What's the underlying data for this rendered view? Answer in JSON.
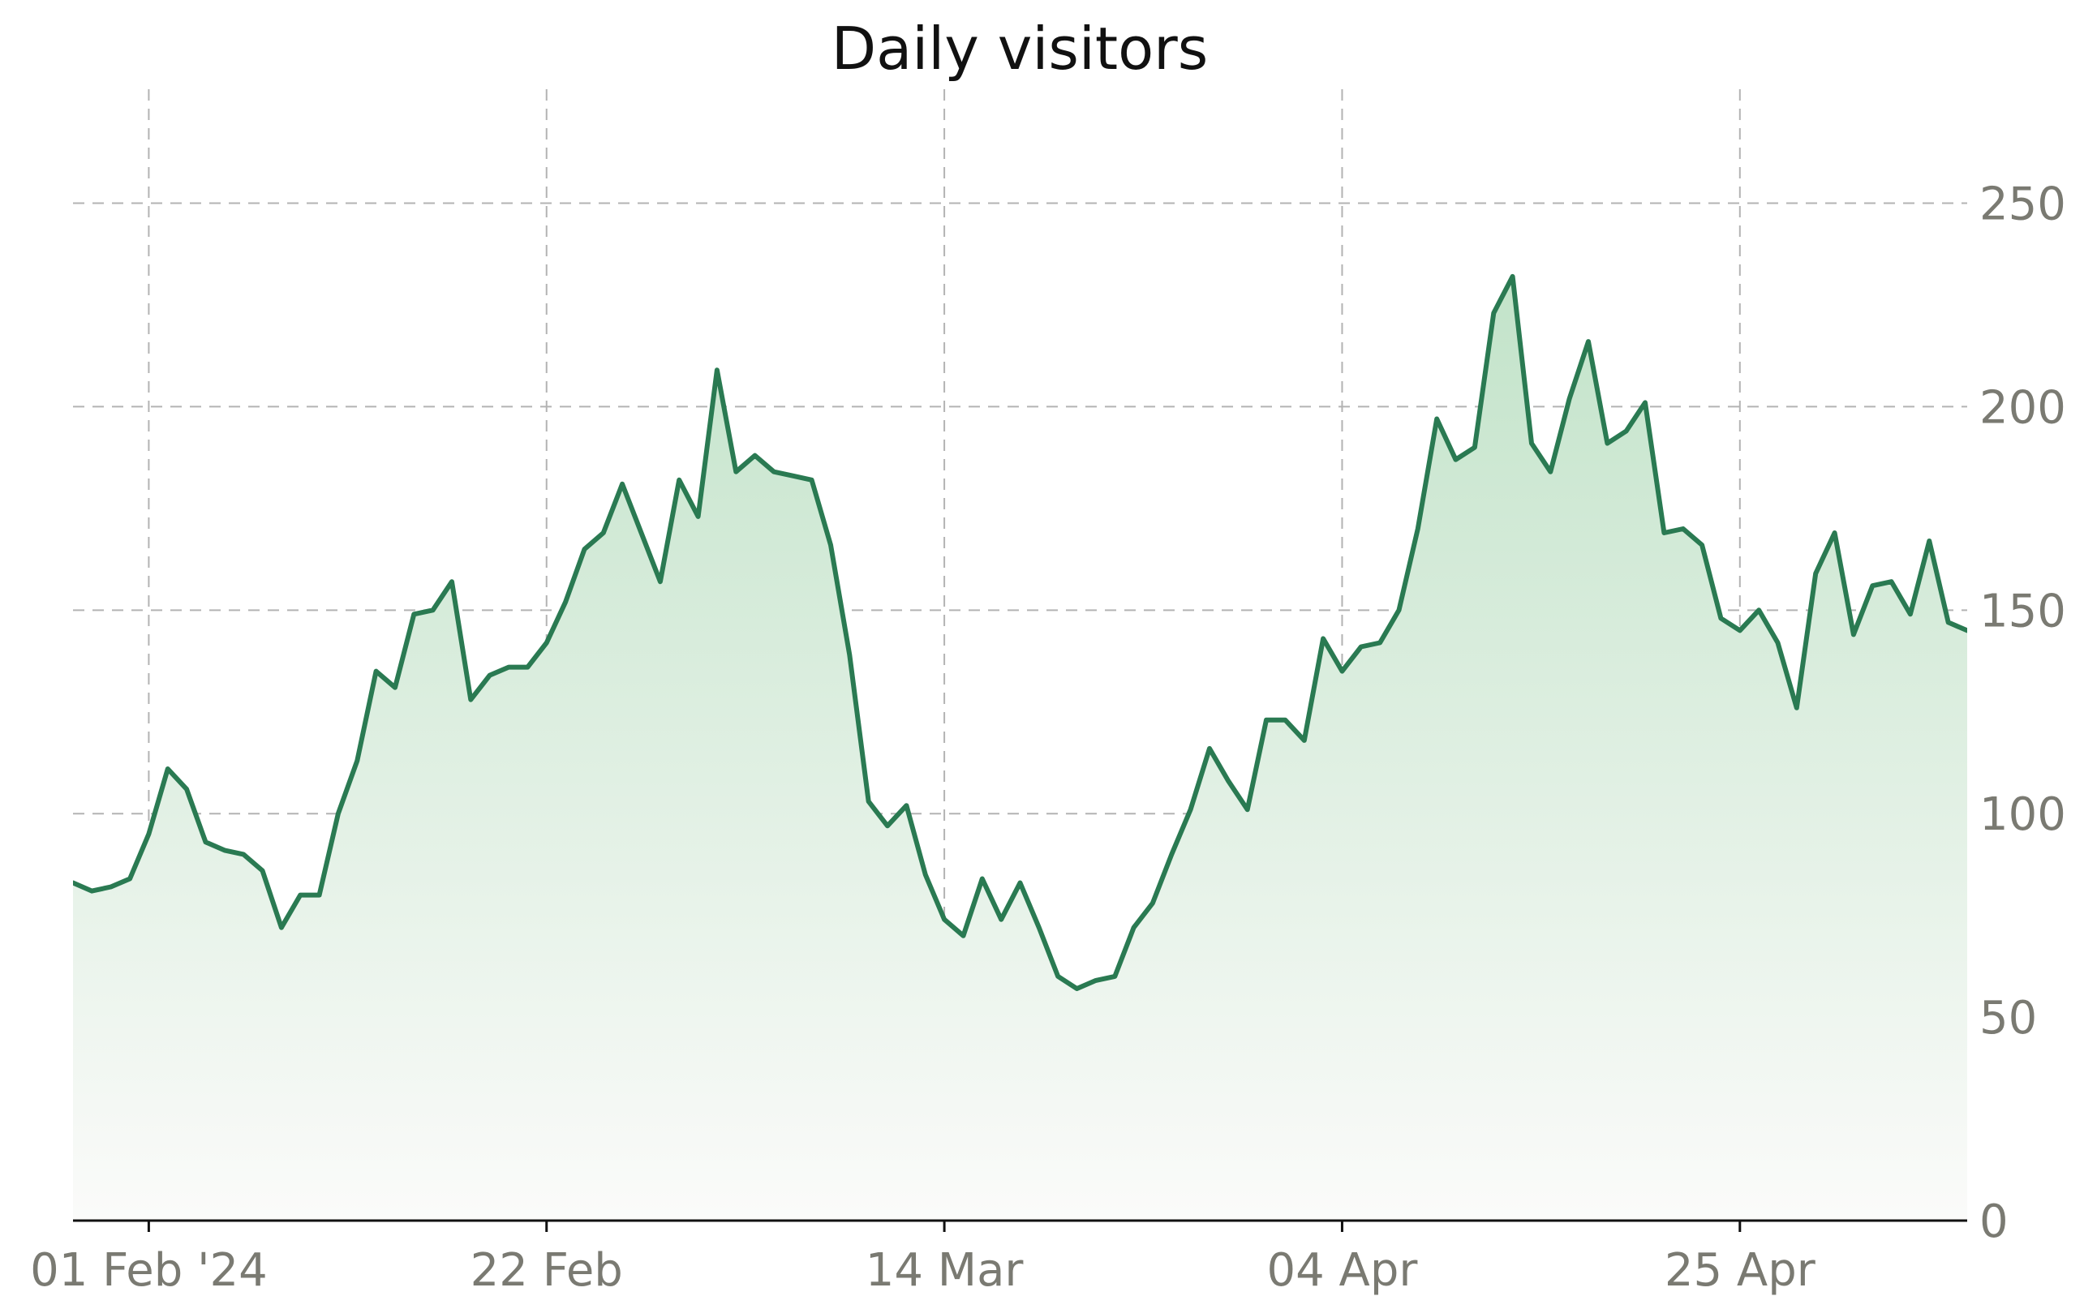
{
  "chart_data": {
    "type": "area",
    "title": "Daily visitors",
    "xlabel": "",
    "ylabel": "",
    "x_tick_labels": [
      "01 Feb '24",
      "22 Feb",
      "14 Mar",
      "04 Apr",
      "25 Apr"
    ],
    "x_tick_dates": [
      "2024-02-01",
      "2024-02-22",
      "2024-03-14",
      "2024-04-04",
      "2024-04-25"
    ],
    "y_ticks": [
      0,
      50,
      100,
      150,
      200,
      250
    ],
    "ylim": [
      0,
      280
    ],
    "xlim": [
      "2024-01-28",
      "2024-05-07"
    ],
    "y_axis_side": "right",
    "grid": true,
    "grid_style": "dashed",
    "legend": "none",
    "line_color": "#2a7a52",
    "fill_color_top": "#c2e3c9",
    "fill_color_bottom": "#fbfbfa",
    "series": [
      {
        "x": [
          "2024-01-28",
          "2024-01-29",
          "2024-01-30",
          "2024-01-31",
          "2024-02-01",
          "2024-02-02",
          "2024-02-03",
          "2024-02-04",
          "2024-02-05",
          "2024-02-06",
          "2024-02-07",
          "2024-02-08",
          "2024-02-09",
          "2024-02-10",
          "2024-02-11",
          "2024-02-12",
          "2024-02-13",
          "2024-02-14",
          "2024-02-15",
          "2024-02-16",
          "2024-02-17",
          "2024-02-18",
          "2024-02-19",
          "2024-02-20",
          "2024-02-21",
          "2024-02-22",
          "2024-02-23",
          "2024-02-24",
          "2024-02-25",
          "2024-02-26",
          "2024-02-27",
          "2024-02-28",
          "2024-02-29",
          "2024-03-01",
          "2024-03-02",
          "2024-03-03",
          "2024-03-04",
          "2024-03-05",
          "2024-03-06",
          "2024-03-07",
          "2024-03-08",
          "2024-03-09",
          "2024-03-10",
          "2024-03-11",
          "2024-03-12",
          "2024-03-13",
          "2024-03-14",
          "2024-03-15",
          "2024-03-16",
          "2024-03-17",
          "2024-03-18",
          "2024-03-19",
          "2024-03-20",
          "2024-03-21",
          "2024-03-22",
          "2024-03-23",
          "2024-03-24",
          "2024-03-25",
          "2024-03-26",
          "2024-03-27",
          "2024-03-28",
          "2024-03-29",
          "2024-03-30",
          "2024-03-31",
          "2024-04-01",
          "2024-04-02",
          "2024-04-03",
          "2024-04-04",
          "2024-04-05",
          "2024-04-06",
          "2024-04-07",
          "2024-04-08",
          "2024-04-09",
          "2024-04-10",
          "2024-04-11",
          "2024-04-12",
          "2024-04-13",
          "2024-04-14",
          "2024-04-15",
          "2024-04-16",
          "2024-04-17",
          "2024-04-18",
          "2024-04-19",
          "2024-04-20",
          "2024-04-21",
          "2024-04-22",
          "2024-04-23",
          "2024-04-24",
          "2024-04-25",
          "2024-04-26",
          "2024-04-27",
          "2024-04-28",
          "2024-04-29",
          "2024-04-30",
          "2024-05-01",
          "2024-05-02",
          "2024-05-03",
          "2024-05-04",
          "2024-05-05",
          "2024-05-06",
          "2024-05-07"
        ],
        "y": [
          83,
          81,
          82,
          84,
          95,
          111,
          106,
          93,
          91,
          90,
          86,
          72,
          80,
          80,
          100,
          113,
          135,
          131,
          149,
          150,
          157,
          128,
          134,
          136,
          136,
          142,
          152,
          165,
          169,
          181,
          169,
          157,
          182,
          173,
          209,
          184,
          188,
          184,
          183,
          182,
          166,
          139,
          103,
          97,
          102,
          85,
          74,
          70,
          84,
          74,
          83,
          72,
          60,
          57,
          59,
          60,
          72,
          78,
          90,
          101,
          116,
          108,
          101,
          123,
          123,
          118,
          143,
          135,
          141,
          142,
          150,
          170,
          197,
          187,
          190,
          223,
          232,
          191,
          184,
          202,
          216,
          191,
          194,
          201,
          169,
          170,
          166,
          148,
          145,
          150,
          142,
          126,
          159,
          169,
          144,
          156,
          157,
          149,
          167,
          147,
          145
        ]
      }
    ]
  }
}
